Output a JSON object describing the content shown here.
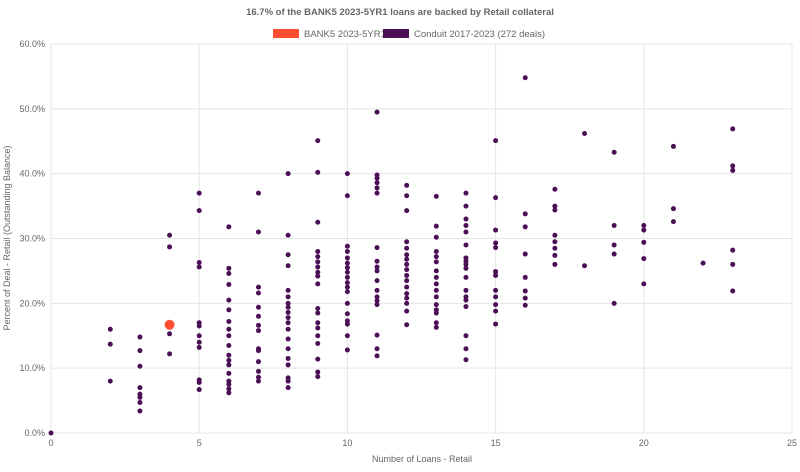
{
  "chart_data": {
    "type": "scatter",
    "title": "16.7% of the BANK5 2023-5YR1 loans are backed by Retail collateral",
    "xlabel": "Number of Loans - Retail",
    "ylabel": "Percent of Deal - Retail (Outstanding Balance)",
    "xlim": [
      0,
      25
    ],
    "ylim": [
      0,
      60
    ],
    "x_ticks": [
      "0",
      "5",
      "10",
      "15",
      "20",
      "25"
    ],
    "y_ticks": [
      "0.0%",
      "10.0%",
      "20.0%",
      "30.0%",
      "40.0%",
      "50.0%",
      "60.0%"
    ],
    "grid": true,
    "legend_position": "top",
    "series": [
      {
        "name": "BANK5 2023-5YR1",
        "color": "#ff4f33",
        "points": [
          [
            4,
            16.7
          ]
        ]
      },
      {
        "name": "Conduit 2017-2023 (272 deals)",
        "color": "#4b0f55",
        "points": [
          [
            0,
            0.0
          ],
          [
            2,
            16.0
          ],
          [
            2,
            13.7
          ],
          [
            2,
            8.0
          ],
          [
            3,
            14.8
          ],
          [
            3,
            12.7
          ],
          [
            3,
            10.3
          ],
          [
            3,
            7.0
          ],
          [
            3,
            6.0
          ],
          [
            3,
            5.5
          ],
          [
            3,
            4.7
          ],
          [
            3,
            3.4
          ],
          [
            4,
            30.5
          ],
          [
            4,
            28.7
          ],
          [
            4,
            15.3
          ],
          [
            4,
            12.2
          ],
          [
            5,
            37.0
          ],
          [
            5,
            34.3
          ],
          [
            5,
            26.3
          ],
          [
            5,
            25.6
          ],
          [
            5,
            17.0
          ],
          [
            5,
            16.5
          ],
          [
            5,
            15.0
          ],
          [
            5,
            14.0
          ],
          [
            5,
            13.2
          ],
          [
            5,
            8.2
          ],
          [
            5,
            7.8
          ],
          [
            5,
            6.7
          ],
          [
            6,
            31.8
          ],
          [
            6,
            25.4
          ],
          [
            6,
            24.6
          ],
          [
            6,
            22.9
          ],
          [
            6,
            20.5
          ],
          [
            6,
            19.0
          ],
          [
            6,
            17.2
          ],
          [
            6,
            16.0
          ],
          [
            6,
            15.0
          ],
          [
            6,
            13.5
          ],
          [
            6,
            12.0
          ],
          [
            6,
            11.2
          ],
          [
            6,
            10.5
          ],
          [
            6,
            9.2
          ],
          [
            6,
            8.0
          ],
          [
            6,
            7.5
          ],
          [
            6,
            6.8
          ],
          [
            6,
            6.2
          ],
          [
            7,
            37.0
          ],
          [
            7,
            31.0
          ],
          [
            7,
            22.5
          ],
          [
            7,
            21.6
          ],
          [
            7,
            19.4
          ],
          [
            7,
            18.0
          ],
          [
            7,
            16.6
          ],
          [
            7,
            15.8
          ],
          [
            7,
            13.0
          ],
          [
            7,
            12.7
          ],
          [
            7,
            11.0
          ],
          [
            7,
            9.5
          ],
          [
            7,
            8.6
          ],
          [
            7,
            8.0
          ],
          [
            8,
            40.0
          ],
          [
            8,
            30.5
          ],
          [
            8,
            27.5
          ],
          [
            8,
            25.8
          ],
          [
            8,
            22.0
          ],
          [
            8,
            21.0
          ],
          [
            8,
            20.0
          ],
          [
            8,
            19.4
          ],
          [
            8,
            18.6
          ],
          [
            8,
            17.8
          ],
          [
            8,
            17.0
          ],
          [
            8,
            16.0
          ],
          [
            8,
            14.5
          ],
          [
            8,
            13.0
          ],
          [
            8,
            11.5
          ],
          [
            8,
            10.5
          ],
          [
            8,
            8.5
          ],
          [
            8,
            8.0
          ],
          [
            8,
            7.0
          ],
          [
            9,
            45.1
          ],
          [
            9,
            40.2
          ],
          [
            9,
            32.5
          ],
          [
            9,
            28.0
          ],
          [
            9,
            27.2
          ],
          [
            9,
            26.4
          ],
          [
            9,
            25.6
          ],
          [
            9,
            24.8
          ],
          [
            9,
            24.2
          ],
          [
            9,
            23.0
          ],
          [
            9,
            19.2
          ],
          [
            9,
            18.5
          ],
          [
            9,
            17.0
          ],
          [
            9,
            16.2
          ],
          [
            9,
            15.0
          ],
          [
            9,
            13.8
          ],
          [
            9,
            11.4
          ],
          [
            9,
            9.4
          ],
          [
            9,
            8.7
          ],
          [
            10,
            40.0
          ],
          [
            10,
            36.6
          ],
          [
            10,
            28.8
          ],
          [
            10,
            28.0
          ],
          [
            10,
            27.0
          ],
          [
            10,
            26.2
          ],
          [
            10,
            25.5
          ],
          [
            10,
            24.8
          ],
          [
            10,
            24.0
          ],
          [
            10,
            23.2
          ],
          [
            10,
            22.5
          ],
          [
            10,
            21.8
          ],
          [
            10,
            20.0
          ],
          [
            10,
            18.4
          ],
          [
            10,
            17.3
          ],
          [
            10,
            16.8
          ],
          [
            10,
            15.0
          ],
          [
            10,
            12.8
          ],
          [
            11,
            49.5
          ],
          [
            11,
            39.8
          ],
          [
            11,
            39.3
          ],
          [
            11,
            38.6
          ],
          [
            11,
            37.8
          ],
          [
            11,
            37.0
          ],
          [
            11,
            28.6
          ],
          [
            11,
            26.5
          ],
          [
            11,
            25.6
          ],
          [
            11,
            25.0
          ],
          [
            11,
            23.5
          ],
          [
            11,
            22.0
          ],
          [
            11,
            21.0
          ],
          [
            11,
            20.4
          ],
          [
            11,
            19.8
          ],
          [
            11,
            15.1
          ],
          [
            11,
            13.0
          ],
          [
            11,
            11.9
          ],
          [
            12,
            38.2
          ],
          [
            12,
            36.6
          ],
          [
            12,
            34.3
          ],
          [
            12,
            29.5
          ],
          [
            12,
            28.5
          ],
          [
            12,
            27.5
          ],
          [
            12,
            26.8
          ],
          [
            12,
            26.0
          ],
          [
            12,
            25.2
          ],
          [
            12,
            24.3
          ],
          [
            12,
            23.5
          ],
          [
            12,
            22.5
          ],
          [
            12,
            21.5
          ],
          [
            12,
            20.8
          ],
          [
            12,
            20.0
          ],
          [
            12,
            18.8
          ],
          [
            12,
            16.7
          ],
          [
            13,
            36.5
          ],
          [
            13,
            31.9
          ],
          [
            13,
            30.2
          ],
          [
            13,
            28.0
          ],
          [
            13,
            27.2
          ],
          [
            13,
            26.4
          ],
          [
            13,
            25.0
          ],
          [
            13,
            24.0
          ],
          [
            13,
            23.0
          ],
          [
            13,
            22.0
          ],
          [
            13,
            21.0
          ],
          [
            13,
            19.8
          ],
          [
            13,
            19.0
          ],
          [
            13,
            18.5
          ],
          [
            13,
            17.0
          ],
          [
            13,
            16.3
          ],
          [
            14,
            37.0
          ],
          [
            14,
            35.0
          ],
          [
            14,
            33.0
          ],
          [
            14,
            32.0
          ],
          [
            14,
            31.0
          ],
          [
            14,
            29.0
          ],
          [
            14,
            27.0
          ],
          [
            14,
            26.5
          ],
          [
            14,
            26.0
          ],
          [
            14,
            25.4
          ],
          [
            14,
            24.0
          ],
          [
            14,
            22.0
          ],
          [
            14,
            21.0
          ],
          [
            14,
            20.5
          ],
          [
            14,
            19.5
          ],
          [
            14,
            15.0
          ],
          [
            14,
            13.0
          ],
          [
            14,
            11.3
          ],
          [
            15,
            45.1
          ],
          [
            15,
            36.3
          ],
          [
            15,
            31.3
          ],
          [
            15,
            29.3
          ],
          [
            15,
            28.6
          ],
          [
            15,
            24.9
          ],
          [
            15,
            24.3
          ],
          [
            15,
            22.0
          ],
          [
            15,
            21.0
          ],
          [
            15,
            19.8
          ],
          [
            15,
            18.8
          ],
          [
            15,
            16.8
          ],
          [
            16,
            54.8
          ],
          [
            16,
            33.8
          ],
          [
            16,
            31.8
          ],
          [
            16,
            27.6
          ],
          [
            16,
            24.0
          ],
          [
            16,
            21.9
          ],
          [
            16,
            20.8
          ],
          [
            16,
            19.7
          ],
          [
            17,
            37.6
          ],
          [
            17,
            35.0
          ],
          [
            17,
            34.4
          ],
          [
            17,
            30.5
          ],
          [
            17,
            29.5
          ],
          [
            17,
            28.5
          ],
          [
            17,
            27.4
          ],
          [
            17,
            26.0
          ],
          [
            18,
            46.2
          ],
          [
            18,
            25.8
          ],
          [
            19,
            43.3
          ],
          [
            19,
            32.0
          ],
          [
            19,
            29.0
          ],
          [
            19,
            27.6
          ],
          [
            19,
            20.0
          ],
          [
            20,
            32.0
          ],
          [
            20,
            31.3
          ],
          [
            20,
            29.4
          ],
          [
            20,
            26.9
          ],
          [
            20,
            23.0
          ],
          [
            21,
            44.2
          ],
          [
            21,
            34.6
          ],
          [
            21,
            32.6
          ],
          [
            22,
            26.2
          ],
          [
            23,
            46.9
          ],
          [
            23,
            41.2
          ],
          [
            23,
            40.5
          ],
          [
            23,
            28.2
          ],
          [
            23,
            26.0
          ],
          [
            23,
            21.9
          ]
        ]
      }
    ]
  }
}
